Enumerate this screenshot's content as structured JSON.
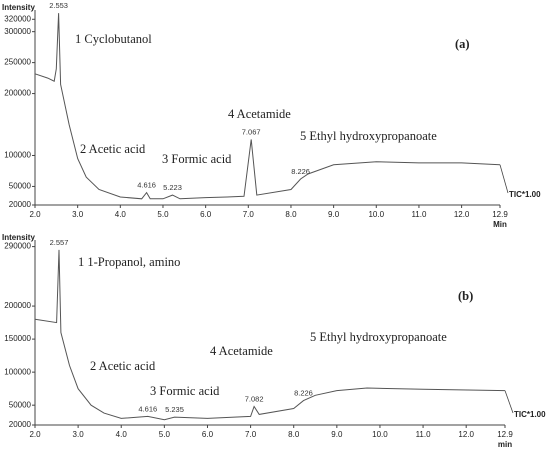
{
  "chart_data": [
    {
      "type": "line",
      "y_label": "Intensity",
      "x_label": "Min",
      "trace_label": "TIC*1.00",
      "panel": "(a)",
      "annotations": [
        "1 Cyclobutanol",
        "2 Acetic acid",
        "3 Formic acid",
        "4 Acetamide",
        "5 Ethyl hydroxypropanoate"
      ],
      "peaks": [
        2.553,
        4.616,
        5.223,
        7.067,
        8.226
      ],
      "x": [
        2.0,
        2.3,
        2.45,
        2.5,
        2.553,
        2.6,
        2.8,
        3.0,
        3.2,
        3.5,
        4.0,
        4.5,
        4.616,
        4.7,
        5.0,
        5.223,
        5.4,
        6.0,
        6.5,
        6.9,
        7.067,
        7.2,
        8.0,
        8.226,
        8.4,
        9.0,
        10.0,
        11.0,
        12.0,
        12.9
      ],
      "values": [
        232000,
        225000,
        220000,
        240000,
        330000,
        215000,
        150000,
        95000,
        65000,
        45000,
        33000,
        30000,
        40000,
        30000,
        30000,
        36000,
        30000,
        32000,
        33000,
        34000,
        126000,
        36000,
        45000,
        62000,
        70000,
        85000,
        90000,
        88000,
        88000,
        85000
      ],
      "color": "#555555",
      "xlim": [
        2.0,
        12.9
      ],
      "ylim": [
        20000,
        335000
      ],
      "xticks": [
        {
          "value": 2,
          "label": "2.0"
        },
        {
          "value": 3,
          "label": "3.0"
        },
        {
          "value": 4,
          "label": "4.0"
        },
        {
          "value": 5,
          "label": "5.0"
        },
        {
          "value": 6,
          "label": "6.0"
        },
        {
          "value": 7,
          "label": "7.0"
        },
        {
          "value": 8,
          "label": "8.0"
        },
        {
          "value": 9,
          "label": "9.0"
        },
        {
          "value": 10,
          "label": "10.0"
        },
        {
          "value": 11,
          "label": "11.0"
        },
        {
          "value": 12,
          "label": "12.0"
        },
        12.9
      ],
      "yticks": [
        20000,
        50000,
        100000,
        200000,
        250000,
        300000,
        320000
      ]
    },
    {
      "type": "line",
      "y_label": "Intensity",
      "x_label": "min",
      "trace_label": "TIC*1.00",
      "panel": "(b)",
      "annotations": [
        "1 1-Propanol, amino",
        "2 Acetic acid",
        "3 Formic acid",
        "4 Acetamide",
        "5 Ethyl hydroxypropanoate"
      ],
      "peaks": [
        2.557,
        4.616,
        5.235,
        7.082,
        8.226
      ],
      "x": [
        2.0,
        2.5,
        2.557,
        2.6,
        2.8,
        3.0,
        3.3,
        3.6,
        4.0,
        4.616,
        5.0,
        5.235,
        6.0,
        7.0,
        7.082,
        7.2,
        8.0,
        8.226,
        8.5,
        9.0,
        9.7,
        11.0,
        12.9
      ],
      "values": [
        180000,
        175000,
        285000,
        160000,
        110000,
        75000,
        50000,
        38000,
        30000,
        33000,
        28000,
        32000,
        30000,
        33000,
        48000,
        36000,
        45000,
        57000,
        65000,
        72000,
        76000,
        74000,
        72000
      ],
      "color": "#555555",
      "xlim": [
        2.0,
        12.9
      ],
      "ylim": [
        20000,
        300000
      ],
      "xticks": [
        {
          "value": 2,
          "label": "2.0"
        },
        {
          "value": 3,
          "label": "3.0"
        },
        {
          "value": 4,
          "label": "4.0"
        },
        {
          "value": 5,
          "label": "5.0"
        },
        {
          "value": 6,
          "label": "6.0"
        },
        {
          "value": 7,
          "label": "7.0"
        },
        {
          "value": 8,
          "label": "8.0"
        },
        {
          "value": 9,
          "label": "9.0"
        },
        {
          "value": 10,
          "label": "10.0"
        },
        {
          "value": 11,
          "label": "11.0"
        },
        {
          "value": 12,
          "label": "12.0"
        },
        12.9
      ],
      "yticks": [
        20000,
        50000,
        100000,
        150000,
        200000,
        290000
      ]
    }
  ]
}
